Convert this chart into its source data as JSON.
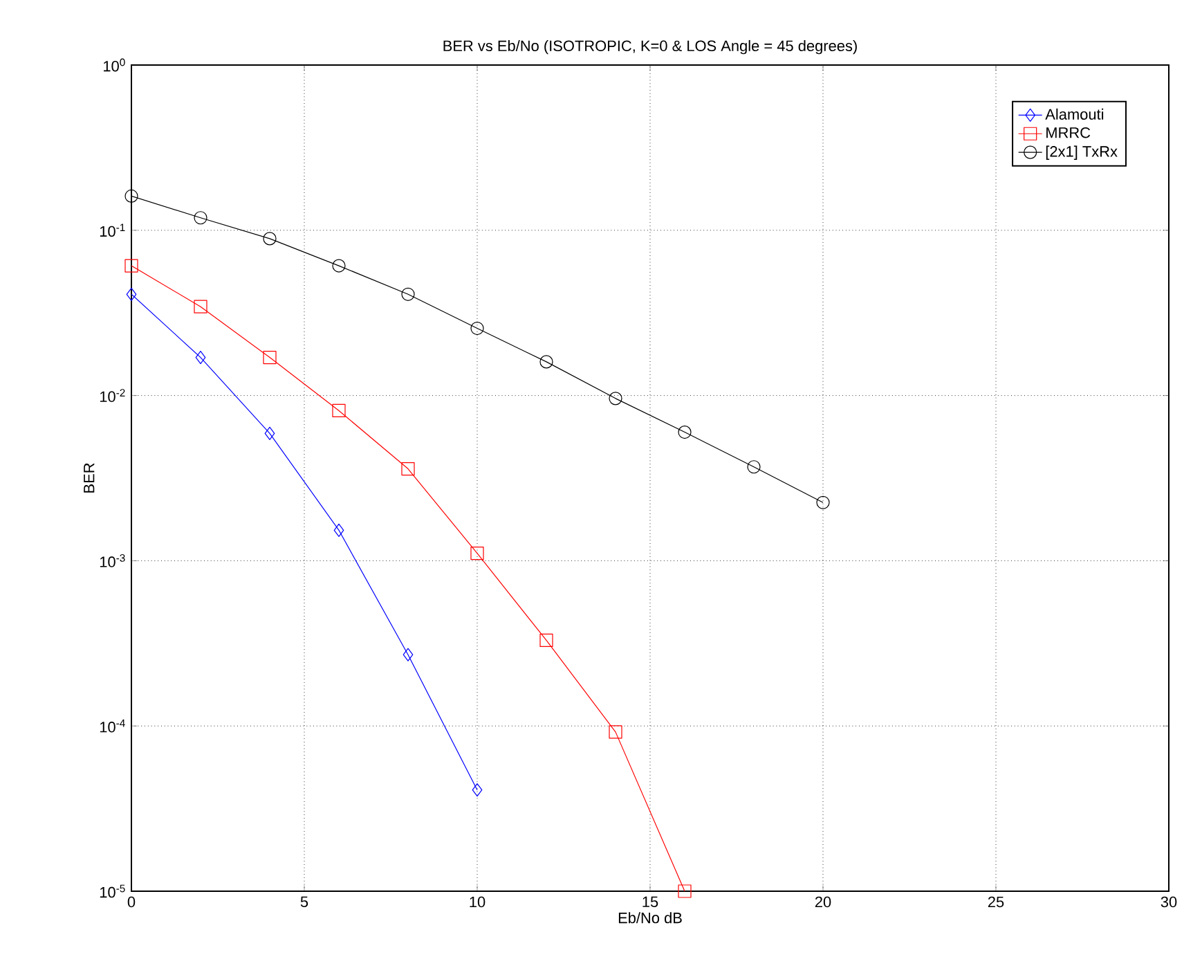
{
  "chart_data": {
    "type": "line",
    "title": "BER vs Eb/No (ISOTROPIC, K=0 & LOS Angle = 45 degrees)",
    "xlabel": "Eb/No dB",
    "ylabel": "BER",
    "log": "y",
    "xlim": [
      0,
      30
    ],
    "xticks": [
      0,
      5,
      10,
      15,
      20,
      25,
      30
    ],
    "ylim": [
      1e-05,
      1
    ],
    "yticks": [
      {
        "value": 1e-05,
        "label": "10$^{-5}$"
      },
      {
        "value": 0.0001,
        "label": "10$^{-4}$"
      },
      {
        "value": 0.001,
        "label": "10$^{-3}$"
      },
      {
        "value": 0.01,
        "label": "10$^{-2}$"
      },
      {
        "value": 0.1,
        "label": "10$^{-1}$"
      },
      {
        "value": 1,
        "label": "10$^{0}$"
      }
    ],
    "grid": true,
    "legend": "top right",
    "line_style": "solid",
    "series": [
      {
        "name": "Alamouti",
        "color": "#0000ff",
        "marker": "diamond",
        "x": [
          0,
          2,
          4,
          6,
          8,
          10
        ],
        "values": [
          0.041,
          0.017,
          0.0059,
          0.00153,
          0.00027,
          4.1e-05
        ]
      },
      {
        "name": "MRRC",
        "color": "#ff0000",
        "marker": "square",
        "x": [
          0,
          2,
          4,
          6,
          8,
          10,
          12,
          14,
          16
        ],
        "values": [
          0.061,
          0.0345,
          0.017,
          0.0081,
          0.0036,
          0.00111,
          0.00033,
          9.2e-05,
          1e-05
        ]
      },
      {
        "name": "[2x1] TxRx",
        "color": "#000000",
        "marker": "circle",
        "x": [
          0,
          2,
          4,
          6,
          8,
          10,
          12,
          14,
          16,
          18,
          20
        ],
        "values": [
          0.161,
          0.119,
          0.089,
          0.061,
          0.041,
          0.0255,
          0.016,
          0.0096,
          0.006,
          0.0037,
          0.00225
        ]
      }
    ]
  }
}
